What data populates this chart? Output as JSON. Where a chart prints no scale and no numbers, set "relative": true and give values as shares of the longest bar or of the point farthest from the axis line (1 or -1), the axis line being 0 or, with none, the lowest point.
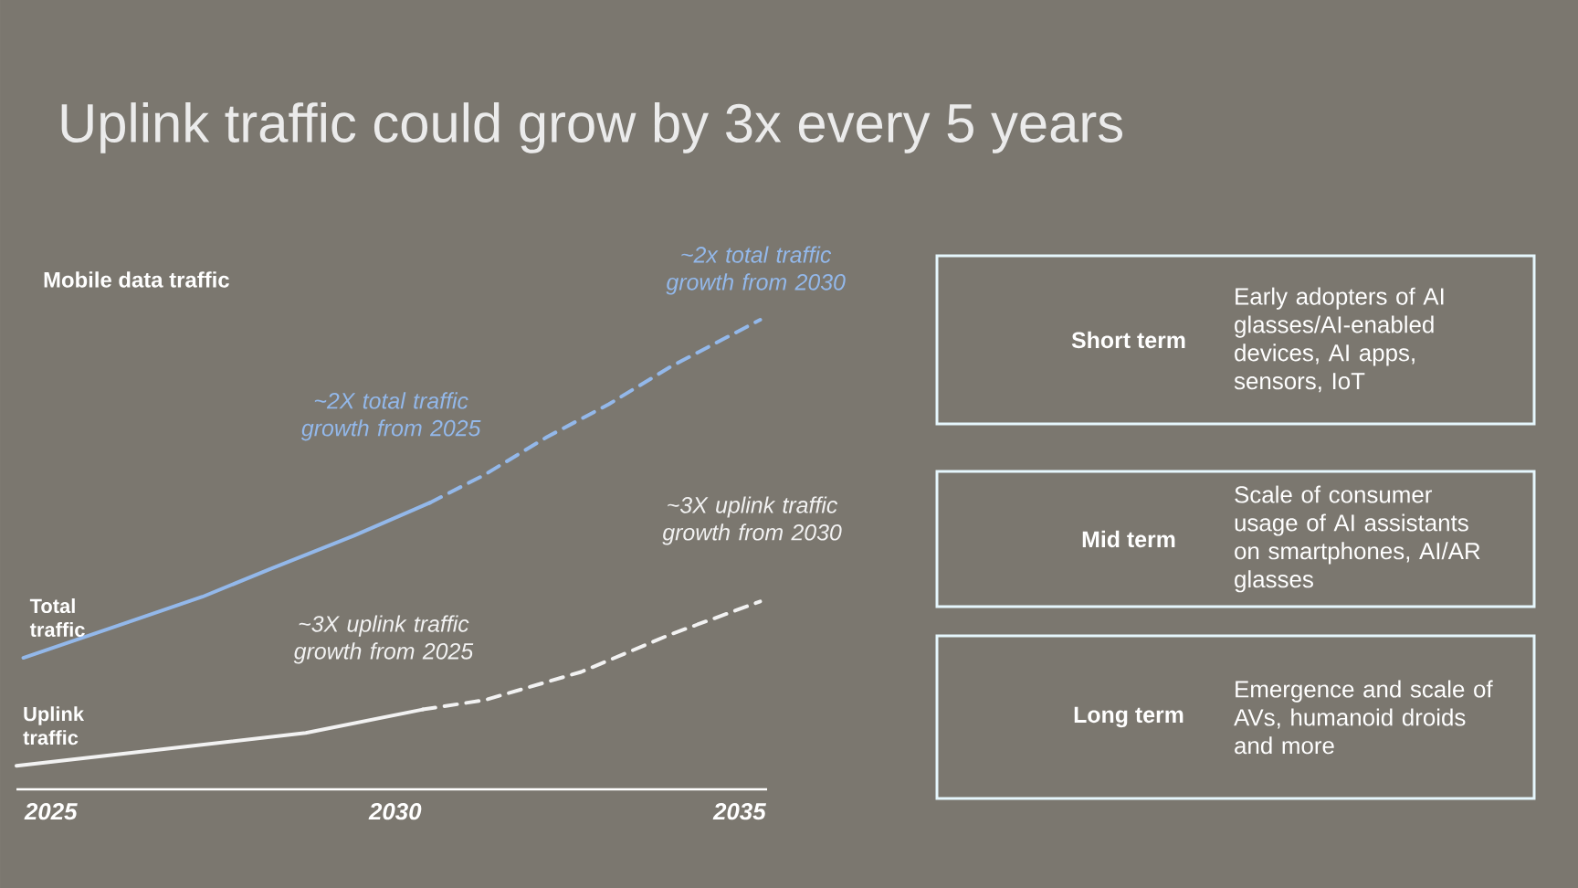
{
  "chart_data": [
    {
      "type": "line",
      "title": "Uplink traffic could grow by 3x every 5 years",
      "subtitle": "Mobile data traffic",
      "relative": true,
      "xlim": [
        2024.5,
        2035.4
      ],
      "xticks": [
        2025,
        2030,
        2035
      ],
      "series": [
        {
          "name": "Total traffic",
          "color": "#93b8ea",
          "x": [
            2024.6,
            2026.0,
            2027.2,
            2028.2,
            2029.4,
            2030.5
          ],
          "values": [
            0.28,
            0.35,
            0.41,
            0.47,
            0.54,
            0.61
          ]
        },
        {
          "color": "#93b8ea",
          "line_style": "dashed",
          "x": [
            2030.5,
            2031.3,
            2032.2,
            2033.1,
            2034.0,
            2035.3
          ],
          "values": [
            0.61,
            0.67,
            0.75,
            0.82,
            0.9,
            1.0
          ]
        },
        {
          "name": "Uplink traffic",
          "color": "#f2f2f2",
          "x": [
            2024.5,
            2026.9,
            2028.7,
            2030.4
          ],
          "values": [
            0.05,
            0.09,
            0.12,
            0.17
          ]
        },
        {
          "color": "#f2f2f2",
          "line_style": "dashed",
          "x": [
            2030.4,
            2031.3,
            2032.7,
            2034.0,
            2035.3
          ],
          "values": [
            0.17,
            0.19,
            0.25,
            0.33,
            0.4
          ]
        }
      ],
      "annotations": [
        "~2x total traffic growth from 2030",
        "~2X total traffic growth from 2025",
        "~3X uplink traffic growth from 2030",
        "~3X uplink traffic growth from 2025"
      ]
    },
    {
      "type": "other",
      "categories": [
        "Short term",
        "Mid term",
        "Long term"
      ],
      "annotations": [
        "Early adopters of AI glasses/AI-enabled devices, AI apps, sensors, IoT",
        "Scale of consumer usage of AI assistants on smartphones, AI/AR glasses",
        "Emergence and scale of AVs, humanoid droids and more"
      ]
    }
  ]
}
